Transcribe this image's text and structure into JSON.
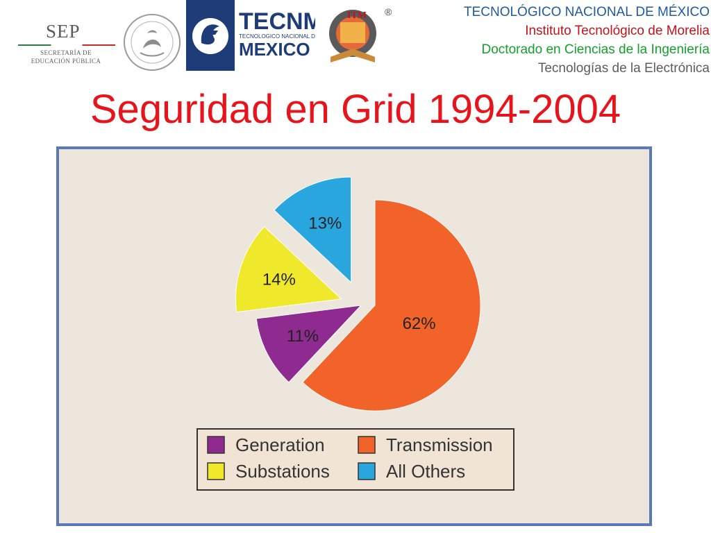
{
  "header": {
    "sep": {
      "title": "SEP",
      "sub_line1": "SECRETARÍA DE",
      "sub_line2": "EDUCACIÓN PÚBLICA"
    },
    "tecnm": {
      "name": "TECNM",
      "sub": "TECNOLOGICO NACIONAL DE",
      "country": "MEXICO"
    },
    "itm": {
      "registered": "®"
    },
    "lines": [
      "TECNOLÓGICO NACIONAL DE MÉXICO",
      "Instituto Tecnológico de Morelia",
      "Doctorado en Ciencias de la Ingeniería",
      "Tecnologías de la Electrónica"
    ]
  },
  "slide": {
    "title": "Seguridad en Grid 1994-2004"
  },
  "chart_data": {
    "type": "pie",
    "title": "",
    "categories": [
      "Generation",
      "Transmission",
      "Substations",
      "All Others"
    ],
    "values": [
      11,
      62,
      14,
      13
    ],
    "labels": [
      "11%",
      "62%",
      "14%",
      "13%"
    ],
    "colors": [
      "#8e2a90",
      "#f2632a",
      "#f0e82a",
      "#2aa6df"
    ],
    "exploded": true,
    "legend_position": "bottom"
  }
}
